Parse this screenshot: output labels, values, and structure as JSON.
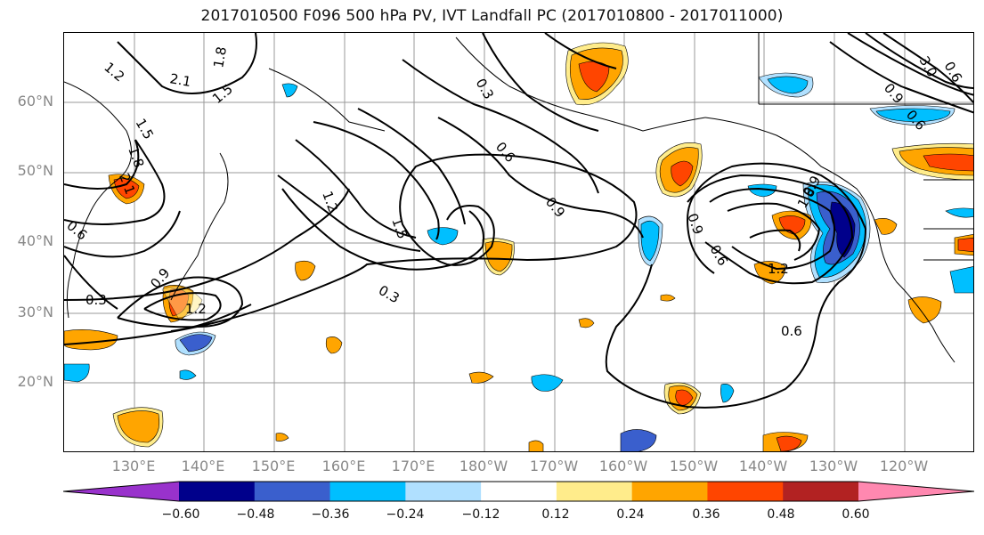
{
  "title": "2017010500 F096 500 hPa PV, IVT Landfall PC (2017010800 - 2017011000)",
  "lat_labels": [
    "60°N",
    "50°N",
    "40°N",
    "30°N",
    "20°N"
  ],
  "lon_labels": [
    "130°E",
    "140°E",
    "150°E",
    "160°E",
    "170°E",
    "180°W",
    "170°W",
    "160°W",
    "150°W",
    "140°W",
    "130°W",
    "120°W"
  ],
  "colorbar": {
    "ticks": [
      "−0.60",
      "−0.48",
      "−0.36",
      "−0.24",
      "−0.12",
      "0.12",
      "0.24",
      "0.36",
      "0.48",
      "0.60"
    ],
    "colors": [
      "#9932cc",
      "#00008b",
      "#3a5fcd",
      "#00bfff",
      "#b0e0ff",
      "#ffffff",
      "#ffec8b",
      "#ffa500",
      "#ff4500",
      "#b22222",
      "#ff88b0"
    ]
  },
  "contour_labels": [
    "1.2",
    "2.1",
    "1.8",
    "1.5",
    "1.8",
    "2.1",
    "0.6",
    "0.3",
    "0.9",
    "1.2",
    "0.3",
    "0.6",
    "0.9",
    "1.2",
    "1.5",
    "0.3",
    "1.5",
    "0.9",
    "0.6",
    "0.6",
    "0.9",
    "1.2",
    "1.8",
    "0.6",
    "0.9",
    "0.6",
    "3.0"
  ]
}
